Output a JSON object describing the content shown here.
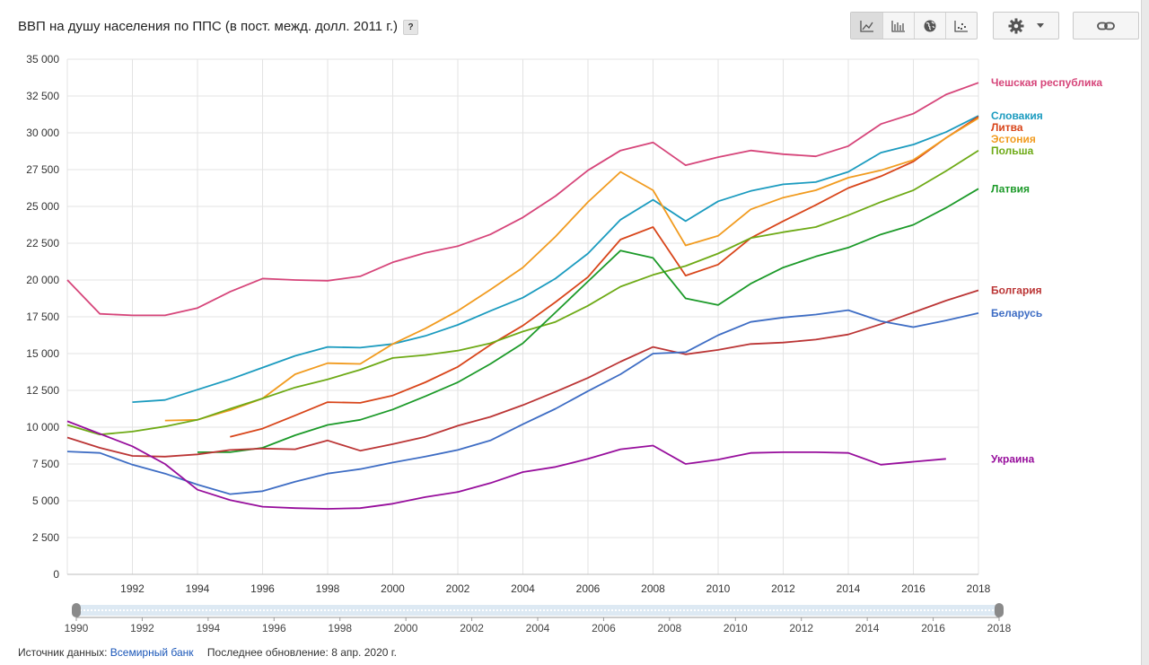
{
  "header": {
    "title": "ВВП на душу населения по ППС (в пост. межд. долл. 2011 г.)",
    "help_label": "?"
  },
  "toolbar": {
    "icons": [
      "line-chart-icon",
      "bar-chart-icon",
      "globe-icon",
      "scatter-icon",
      "gear-icon",
      "chevron-down-icon",
      "link-icon"
    ]
  },
  "chart_data": {
    "type": "line",
    "x": [
      1990,
      1991,
      1992,
      1993,
      1994,
      1995,
      1996,
      1997,
      1998,
      1999,
      2000,
      2001,
      2002,
      2003,
      2004,
      2005,
      2006,
      2007,
      2008,
      2009,
      2010,
      2011,
      2012,
      2013,
      2014,
      2015,
      2016,
      2017,
      2018
    ],
    "xlim": [
      1990,
      2018
    ],
    "ylim": [
      0,
      35000
    ],
    "x_ticks": [
      "1992",
      "1994",
      "1996",
      "1998",
      "2000",
      "2002",
      "2004",
      "2006",
      "2008",
      "2010",
      "2012",
      "2014",
      "2016",
      "2018"
    ],
    "y_ticks": [
      "0",
      "2 500",
      "5 000",
      "7 500",
      "10 000",
      "12 500",
      "15 000",
      "17 500",
      "20 000",
      "22 500",
      "25 000",
      "27 500",
      "30 000",
      "32 500",
      "35 000"
    ],
    "grid": true,
    "legend": "right",
    "series": [
      {
        "name": "Чешская республика",
        "color": "#d6457a",
        "values": [
          20000,
          17700,
          17600,
          17600,
          18100,
          19200,
          20100,
          20000,
          19950,
          20250,
          21200,
          21850,
          22300,
          23100,
          24250,
          25700,
          27450,
          28800,
          29350,
          27800,
          28350,
          28800,
          28550,
          28400,
          29100,
          30600,
          31300,
          32600,
          33400
        ]
      },
      {
        "name": "Словакия",
        "color": "#1b9bbf",
        "values": [
          null,
          null,
          11700,
          11850,
          12550,
          13250,
          14050,
          14850,
          15450,
          15400,
          15650,
          16200,
          16950,
          17900,
          18800,
          20100,
          21800,
          24100,
          25450,
          24000,
          25350,
          26050,
          26500,
          26650,
          27350,
          28650,
          29200,
          30050,
          31150
        ]
      },
      {
        "name": "Литва",
        "color": "#d8451a",
        "values": [
          null,
          null,
          null,
          null,
          null,
          9350,
          9900,
          10800,
          11700,
          11650,
          12150,
          13050,
          14100,
          15600,
          16900,
          18500,
          20200,
          22750,
          23600,
          20300,
          21050,
          22850,
          24000,
          25100,
          26250,
          27050,
          28050,
          29650,
          31100
        ]
      },
      {
        "name": "Эстония",
        "color": "#f19b1f",
        "values": [
          null,
          null,
          null,
          10450,
          10500,
          11150,
          11950,
          13600,
          14350,
          14300,
          15650,
          16700,
          17900,
          19350,
          20850,
          22950,
          25300,
          27350,
          26100,
          22350,
          23000,
          24800,
          25600,
          26100,
          26950,
          27450,
          28150,
          29650,
          31000
        ]
      },
      {
        "name": "Польша",
        "color": "#6eaa16",
        "values": [
          10150,
          9500,
          9700,
          10050,
          10500,
          11250,
          11950,
          12700,
          13250,
          13900,
          14700,
          14900,
          15200,
          15700,
          16500,
          17150,
          18250,
          19550,
          20350,
          20950,
          21800,
          22850,
          23250,
          23600,
          24400,
          25300,
          26100,
          27400,
          28800
        ]
      },
      {
        "name": "Латвия",
        "color": "#1c9a29",
        "values": [
          null,
          null,
          null,
          null,
          8300,
          8300,
          8600,
          9450,
          10150,
          10500,
          11200,
          12100,
          13050,
          14300,
          15700,
          17800,
          19900,
          22000,
          21500,
          18750,
          18300,
          19750,
          20850,
          21600,
          22200,
          23100,
          23750,
          24900,
          26200
        ]
      },
      {
        "name": "Болгария",
        "color": "#bb3535",
        "values": [
          9300,
          8600,
          8050,
          8000,
          8150,
          8450,
          8550,
          8500,
          9100,
          8400,
          8850,
          9350,
          10100,
          10700,
          11500,
          12400,
          13350,
          14450,
          15450,
          14950,
          15250,
          15650,
          15750,
          15950,
          16300,
          17000,
          17800,
          18600,
          19300
        ]
      },
      {
        "name": "Беларусь",
        "color": "#3e6dc4",
        "values": [
          8350,
          8250,
          7450,
          6850,
          6100,
          5450,
          5650,
          6300,
          6850,
          7150,
          7600,
          8000,
          8450,
          9100,
          10200,
          11250,
          12450,
          13600,
          15000,
          15100,
          16250,
          17150,
          17450,
          17650,
          17950,
          17200,
          16800,
          17250,
          17750
        ]
      },
      {
        "name": "Украина",
        "color": "#970e9c",
        "values": [
          10400,
          9550,
          8700,
          7500,
          5750,
          5050,
          4600,
          4500,
          4450,
          4500,
          4800,
          5250,
          5600,
          6200,
          6950,
          7300,
          7850,
          8500,
          8750,
          7500,
          7800,
          8250,
          8300,
          8300,
          8250,
          7450,
          7650,
          7850,
          null
        ]
      }
    ]
  },
  "slider": {
    "labels": [
      "1990",
      "1992",
      "1994",
      "1996",
      "1998",
      "2000",
      "2002",
      "2004",
      "2006",
      "2008",
      "2010",
      "2012",
      "2014",
      "2016",
      "2018"
    ]
  },
  "footer": {
    "source_label": "Источник данных:",
    "source_link": "Всемирный банк",
    "updated_label": "Последнее обновление: 8 апр. 2020 г."
  }
}
